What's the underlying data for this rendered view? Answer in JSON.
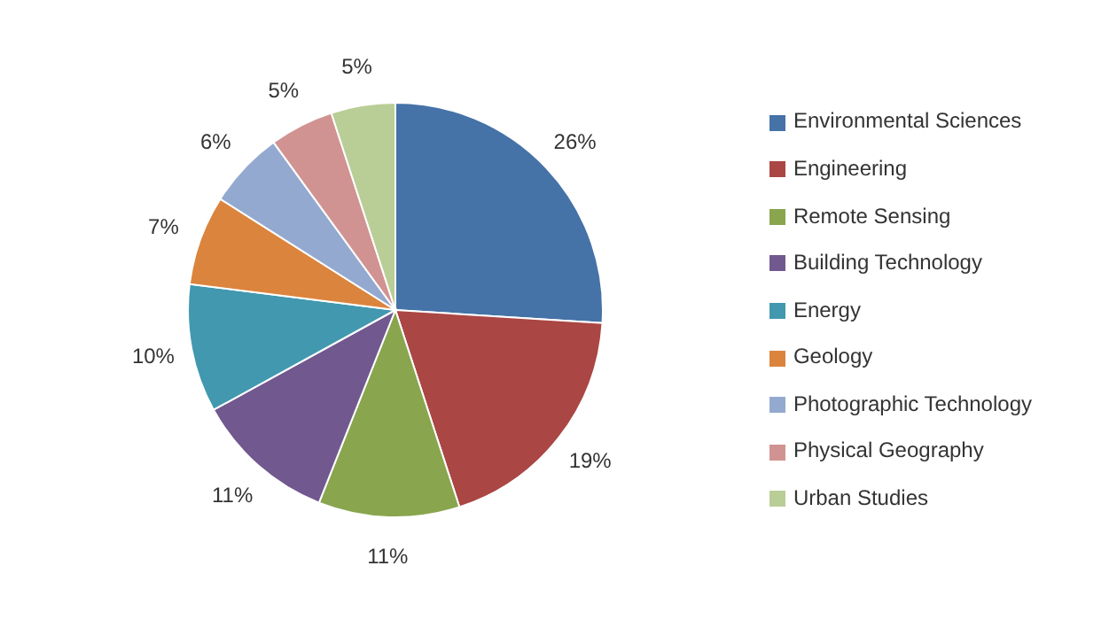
{
  "chart_data": {
    "type": "pie",
    "categories": [
      "Environmental Sciences",
      "Engineering",
      "Remote Sensing",
      "Building Technology",
      "Energy",
      "Geology",
      "Photographic Technology",
      "Physical Geography",
      "Urban Studies"
    ],
    "values": [
      26,
      19,
      11,
      11,
      10,
      7,
      6,
      5,
      5
    ],
    "value_labels": [
      "26%",
      "19%",
      "11%",
      "11%",
      "10%",
      "7%",
      "6%",
      "5%",
      "5%"
    ],
    "colors": [
      "#4572a7",
      "#aa4643",
      "#89a54e",
      "#71588f",
      "#4198af",
      "#db843d",
      "#93a9cf",
      "#d19392",
      "#b9cd96"
    ],
    "legend": "right"
  }
}
